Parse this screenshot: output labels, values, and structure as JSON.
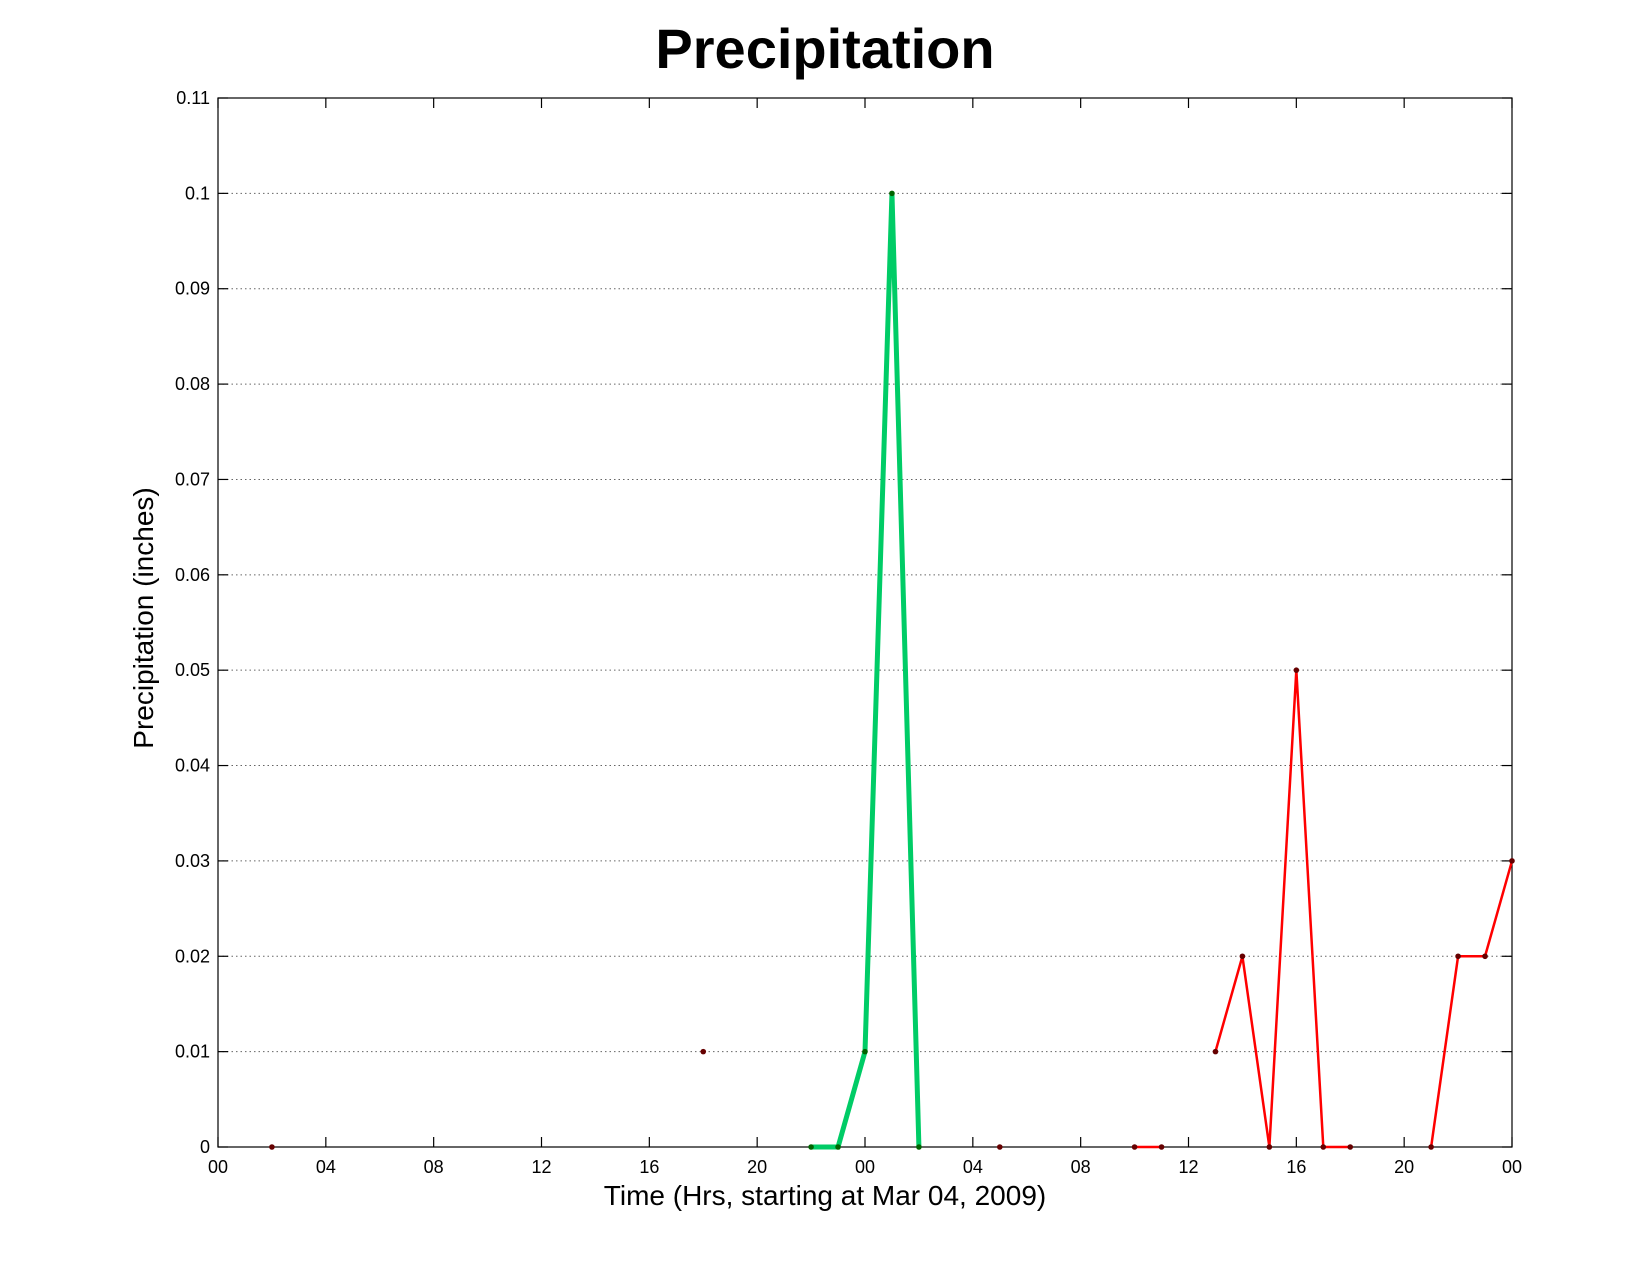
{
  "chart_data": {
    "type": "line",
    "title": "Precipitation",
    "xlabel": "Time (Hrs, starting at Mar 04, 2009)",
    "ylabel": "Precipitation (inches)",
    "xlim": [
      0,
      48
    ],
    "ylim": [
      0,
      0.11
    ],
    "x_unit": "hours",
    "x_ticks": [
      0,
      4,
      8,
      12,
      16,
      20,
      24,
      28,
      32,
      36,
      40,
      44,
      48
    ],
    "x_tick_labels": [
      "00",
      "04",
      "08",
      "12",
      "16",
      "20",
      "00",
      "04",
      "08",
      "12",
      "16",
      "20",
      "00"
    ],
    "y_ticks": [
      0,
      0.01,
      0.02,
      0.03,
      0.04,
      0.05,
      0.06,
      0.07,
      0.08,
      0.09,
      0.1,
      0.11
    ],
    "y_tick_labels": [
      "0",
      "0.01",
      "0.02",
      "0.03",
      "0.04",
      "0.05",
      "0.06",
      "0.07",
      "0.08",
      "0.09",
      "0.1",
      "0.11"
    ],
    "grid": "horizontal dotted",
    "series": [
      {
        "color": "#00cc66",
        "line_width": 5,
        "marker_color": "#006400",
        "points": [
          [
            22,
            0
          ],
          [
            23,
            0
          ],
          [
            24,
            0.01
          ],
          [
            25,
            0.1
          ],
          [
            26,
            0
          ]
        ]
      },
      {
        "color": "#ff0000",
        "line_width": 2.5,
        "marker_color": "#660000",
        "points": [
          [
            2,
            0
          ]
        ]
      },
      {
        "color": "#ff0000",
        "line_width": 2.5,
        "marker_color": "#660000",
        "points": [
          [
            18,
            0.01
          ]
        ]
      },
      {
        "color": "#ff0000",
        "line_width": 2.5,
        "marker_color": "#660000",
        "points": [
          [
            29,
            0
          ]
        ]
      },
      {
        "color": "#ff0000",
        "line_width": 2.5,
        "marker_color": "#660000",
        "points": [
          [
            34,
            0
          ],
          [
            35,
            0
          ]
        ]
      },
      {
        "color": "#ff0000",
        "line_width": 2.5,
        "marker_color": "#660000",
        "points": [
          [
            37,
            0.01
          ],
          [
            38,
            0.02
          ],
          [
            39,
            0
          ],
          [
            40,
            0.05
          ],
          [
            41,
            0
          ],
          [
            42,
            0
          ]
        ]
      },
      {
        "color": "#ff0000",
        "line_width": 2.5,
        "marker_color": "#660000",
        "points": [
          [
            45,
            0
          ],
          [
            46,
            0.02
          ],
          [
            47,
            0.02
          ],
          [
            48,
            0.03
          ]
        ]
      }
    ]
  }
}
